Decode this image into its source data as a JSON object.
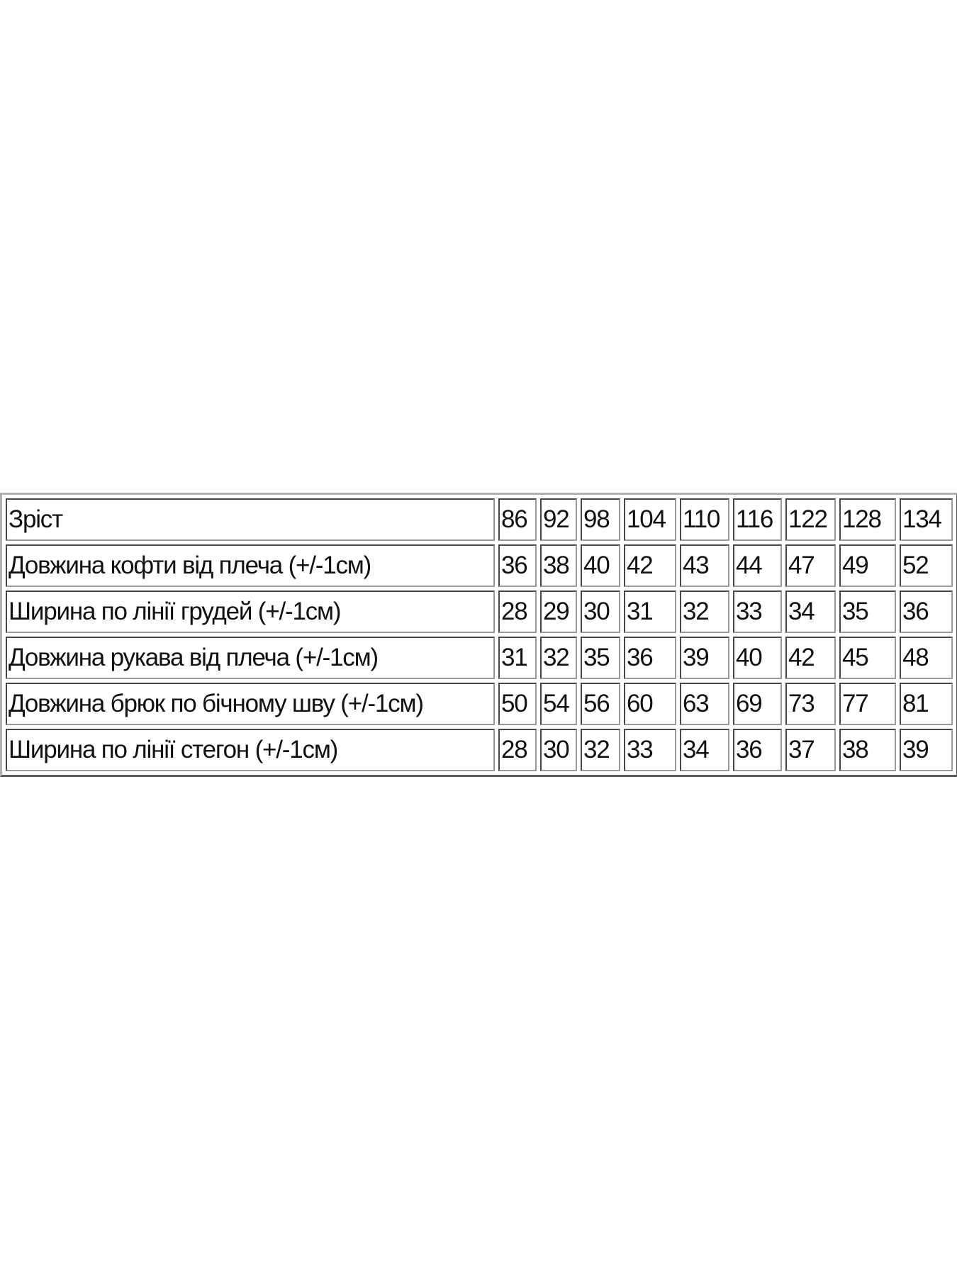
{
  "table": {
    "header": {
      "label": "Зріст",
      "sizes": [
        "86",
        "92",
        "98",
        "104",
        "110",
        "116",
        "122",
        "128",
        "134"
      ]
    },
    "rows": [
      {
        "label": "Довжина кофти від плеча (+/-1см)",
        "values": [
          "36",
          "38",
          "40",
          "42",
          "43",
          "44",
          "47",
          "49",
          "52"
        ]
      },
      {
        "label": "Ширина по лінії грудей (+/-1см)",
        "values": [
          "28",
          "29",
          "30",
          "31",
          "32",
          "33",
          "34",
          "35",
          "36"
        ]
      },
      {
        "label": "Довжина рукава від плеча (+/-1см)",
        "values": [
          "31",
          "32",
          "35",
          "36",
          "39",
          "40",
          "42",
          "45",
          "48"
        ]
      },
      {
        "label": "Довжина брюк по бічному шву (+/-1см)",
        "values": [
          "50",
          "54",
          "56",
          "60",
          "63",
          "69",
          "73",
          "77",
          "81"
        ]
      },
      {
        "label": "Ширина по лінії стегон (+/-1см)",
        "values": [
          "28",
          "30",
          "32",
          "33",
          "34",
          "36",
          "37",
          "38",
          "39"
        ]
      }
    ]
  }
}
